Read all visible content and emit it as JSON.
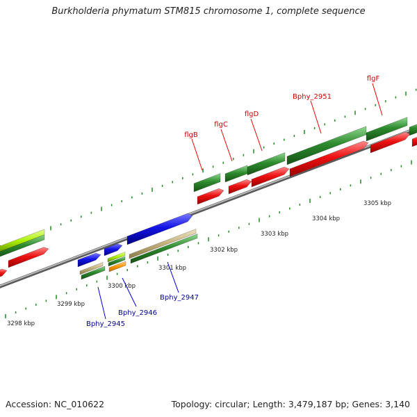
{
  "title": "Burkholderia phymatum STM815 chromosome 1, complete sequence",
  "footer": {
    "accession": "Accession: NC_010622",
    "stats": "Topology: circular; Length: 3,479,187 bp; Genes: 3,140"
  },
  "scale": {
    "unit": "kbp",
    "ticks": [
      3298,
      3299,
      3300,
      3301,
      3302,
      3303,
      3304,
      3305
    ]
  },
  "colors": {
    "backbone": "#8a8a8a",
    "tick": "#1f8a1f",
    "gene_green": "#2e8b2e",
    "cds_red": "#ee1111",
    "cds_blue": "#1414e6",
    "tan": "#c2b07a",
    "lime": "#aaf000",
    "orange": "#ff9900",
    "label_top": "#cc0000",
    "label_bottom": "#000099"
  },
  "gene_labels": [
    {
      "id": "flgB",
      "text": "flgB",
      "strand": "top"
    },
    {
      "id": "flgC",
      "text": "flgC",
      "strand": "top"
    },
    {
      "id": "flgD",
      "text": "flgD",
      "strand": "top"
    },
    {
      "id": "bphy-2951",
      "text": "Bphy_2951",
      "strand": "top"
    },
    {
      "id": "flgF",
      "text": "flgF",
      "strand": "top"
    },
    {
      "id": "bphy-2945",
      "text": "Bphy_2945",
      "strand": "bottom"
    },
    {
      "id": "bphy-2946",
      "text": "Bphy_2946",
      "strand": "bottom"
    },
    {
      "id": "bphy-2947",
      "text": "Bphy_2947",
      "strand": "bottom"
    }
  ]
}
